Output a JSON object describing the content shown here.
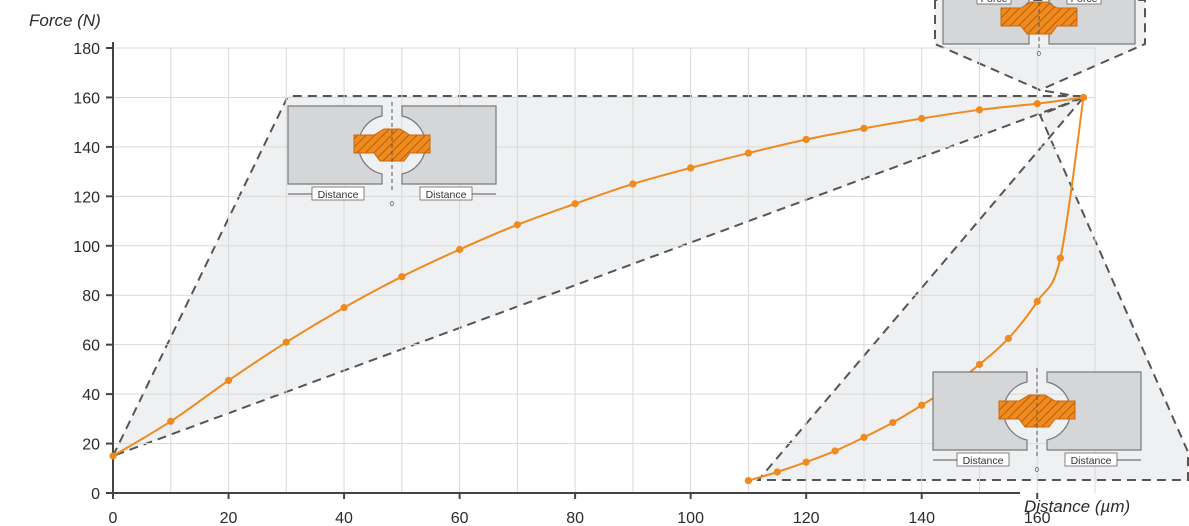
{
  "colors": {
    "curve": "#ee8a1e",
    "grid": "#d9d9d9",
    "axis": "#444444",
    "shade": "#eef0f2",
    "shade_border": "#555555",
    "block_fill": "#d5d6d8",
    "block_stroke": "#7a7a7a",
    "hatch": "#ee8a1e"
  },
  "chart_data": {
    "type": "line",
    "xlabel": "Distance (µm)",
    "ylabel": "Force (N)",
    "xlim": [
      0,
      170
    ],
    "ylim": [
      0,
      180
    ],
    "x_ticks": [
      0,
      20,
      40,
      60,
      80,
      100,
      120,
      140,
      160
    ],
    "y_ticks": [
      0,
      20,
      40,
      60,
      80,
      100,
      120,
      140,
      160,
      180
    ],
    "grid": true,
    "series": [
      {
        "segment": "loading",
        "points": [
          [
            0,
            15
          ],
          [
            10,
            29
          ],
          [
            20,
            45.5
          ],
          [
            30,
            61
          ],
          [
            40,
            75
          ],
          [
            50,
            87.5
          ],
          [
            60,
            98.5
          ],
          [
            70,
            108.5
          ],
          [
            80,
            117
          ],
          [
            90,
            125
          ],
          [
            100,
            131.5
          ],
          [
            110,
            137.5
          ],
          [
            120,
            143
          ],
          [
            130,
            147.5
          ],
          [
            140,
            151.5
          ],
          [
            150,
            155
          ],
          [
            160,
            157.5
          ],
          [
            168,
            160
          ]
        ]
      },
      {
        "segment": "unloading",
        "points": [
          [
            168,
            160
          ],
          [
            164,
            95
          ],
          [
            160,
            77.5
          ],
          [
            155,
            62.5
          ],
          [
            150,
            52
          ],
          [
            145,
            43
          ],
          [
            140,
            35.5
          ],
          [
            135,
            28.5
          ],
          [
            130,
            22.5
          ],
          [
            125,
            17
          ],
          [
            120,
            12.5
          ],
          [
            115,
            8.5
          ],
          [
            110,
            5
          ]
        ]
      }
    ],
    "insets": [
      {
        "position": "top-left",
        "labels": [
          "Distance",
          "Distance"
        ],
        "zero": "0"
      },
      {
        "position": "top-right",
        "labels": [
          "Force",
          "Force"
        ],
        "zero": "0"
      },
      {
        "position": "bottom-right",
        "labels": [
          "Distance",
          "Distance"
        ],
        "zero": "0"
      }
    ]
  }
}
